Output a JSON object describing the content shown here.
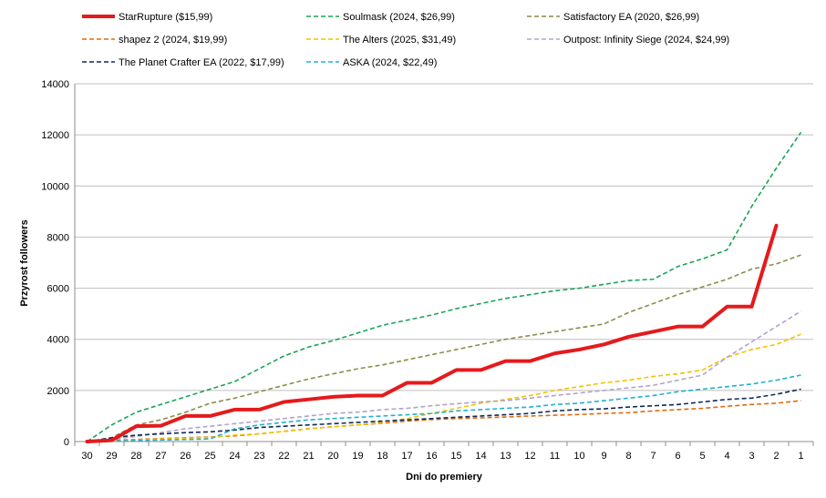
{
  "chart_data": {
    "type": "line",
    "title": "",
    "xlabel": "Dni do premiery",
    "ylabel": "Przyrost followers",
    "ylim": [
      0,
      14000
    ],
    "ytick_step": 2000,
    "yticks": [
      "0",
      "2000",
      "4000",
      "6000",
      "8000",
      "10000",
      "12000",
      "14000"
    ],
    "grid": "horizontal",
    "legend_position": "top",
    "categories": [
      "30",
      "29",
      "28",
      "27",
      "26",
      "25",
      "24",
      "23",
      "22",
      "21",
      "20",
      "19",
      "18",
      "17",
      "16",
      "15",
      "14",
      "13",
      "12",
      "11",
      "10",
      "9",
      "8",
      "7",
      "6",
      "5",
      "4",
      "3",
      "2",
      "1"
    ],
    "series": [
      {
        "name": "StarRupture ($15,99)",
        "color": "#e41a1c",
        "dash": "solid",
        "width": 4,
        "values": [
          0,
          50,
          600,
          620,
          1000,
          1000,
          1250,
          1250,
          1550,
          1650,
          1750,
          1800,
          1800,
          2300,
          2300,
          2800,
          2800,
          3150,
          3150,
          3450,
          3600,
          3800,
          4100,
          4300,
          4500,
          4500,
          5280,
          5280,
          8450,
          null
        ]
      },
      {
        "name": "Soulmask (2024, $26,99)",
        "color": "#1aa356",
        "dash": "dashed",
        "width": 1.6,
        "values": [
          0,
          650,
          1150,
          1450,
          1750,
          2050,
          2350,
          2850,
          3350,
          3700,
          3950,
          4250,
          4550,
          4750,
          4950,
          5200,
          5400,
          5600,
          5750,
          5900,
          6000,
          6150,
          6300,
          6350,
          6850,
          7150,
          7500,
          9200,
          10700,
          12100
        ]
      },
      {
        "name": "Satisfactory EA (2020, $26,99)",
        "color": "#8c8c4a",
        "dash": "dashed",
        "width": 1.6,
        "values": [
          0,
          150,
          650,
          850,
          1150,
          1500,
          1700,
          1950,
          2200,
          2450,
          2650,
          2850,
          3000,
          3200,
          3400,
          3600,
          3800,
          4000,
          4150,
          4300,
          4450,
          4600,
          5050,
          5400,
          5750,
          6050,
          6350,
          6750,
          6950,
          7300
        ]
      },
      {
        "name": "shapez 2 (2024, $19,99)",
        "color": "#e26b0a",
        "dash": "dashed",
        "width": 1.6,
        "values": [
          0,
          50,
          80,
          120,
          150,
          180,
          220,
          300,
          400,
          500,
          580,
          650,
          720,
          800,
          860,
          900,
          930,
          960,
          1000,
          1030,
          1060,
          1100,
          1130,
          1200,
          1250,
          1300,
          1380,
          1450,
          1500,
          1600
        ]
      },
      {
        "name": "The Alters (2025, $31,49)",
        "color": "#f2c200",
        "dash": "dashed",
        "width": 1.6,
        "values": [
          0,
          20,
          60,
          100,
          130,
          160,
          250,
          300,
          400,
          500,
          580,
          650,
          750,
          900,
          1100,
          1300,
          1500,
          1650,
          1800,
          2000,
          2150,
          2300,
          2400,
          2550,
          2650,
          2800,
          3300,
          3600,
          3800,
          4200
        ]
      },
      {
        "name": "Outpost: Infinity Siege (2024, $24,99)",
        "color": "#b3a3cc",
        "dash": "dashed",
        "width": 1.6,
        "values": [
          0,
          100,
          200,
          350,
          500,
          600,
          700,
          800,
          900,
          1000,
          1100,
          1150,
          1250,
          1300,
          1400,
          1480,
          1550,
          1600,
          1700,
          1800,
          1900,
          2000,
          2100,
          2200,
          2400,
          2600,
          3300,
          3900,
          4500,
          5100
        ]
      },
      {
        "name": "The Planet Crafter EA (2022, $17,99)",
        "color": "#0f2a55",
        "dash": "dashed",
        "width": 1.6,
        "values": [
          0,
          150,
          250,
          300,
          350,
          380,
          450,
          550,
          600,
          650,
          700,
          750,
          800,
          850,
          900,
          950,
          1000,
          1050,
          1100,
          1200,
          1250,
          1280,
          1350,
          1400,
          1450,
          1550,
          1650,
          1700,
          1850,
          2050
        ]
      },
      {
        "name": "ASKA (2024, $22,49)",
        "color": "#22b0d0",
        "dash": "dashed",
        "width": 1.6,
        "values": [
          0,
          20,
          40,
          60,
          80,
          100,
          500,
          650,
          750,
          850,
          900,
          950,
          1000,
          1050,
          1100,
          1200,
          1250,
          1300,
          1350,
          1450,
          1500,
          1600,
          1700,
          1800,
          1950,
          2050,
          2150,
          2250,
          2400,
          2600
        ]
      }
    ]
  }
}
